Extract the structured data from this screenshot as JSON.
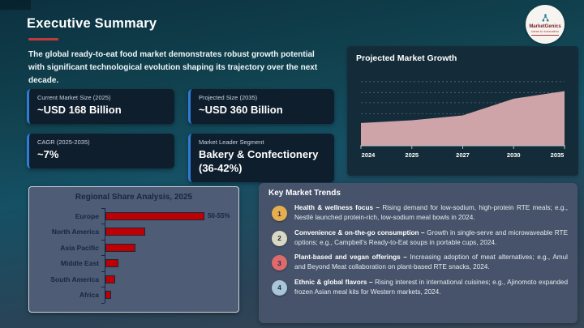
{
  "slide": {
    "title": "Executive Summary",
    "intro": "The global ready-to-eat food market demonstrates robust growth potential with significant technological evolution shaping its trajectory over the next decade."
  },
  "logo": {
    "name": "MarketGenics",
    "tagline": "Ideas to Innovation"
  },
  "stats": [
    {
      "label": "Current Market Size (2025)",
      "value": "~USD 168 Billion"
    },
    {
      "label": "Projected Size (2035)",
      "value": "~USD 360 Billion"
    },
    {
      "label": "CAGR (2025-2035)",
      "value": "~7%"
    },
    {
      "label": "Market Leader Segment",
      "value": "Bakery & Confectionery (36-42%)"
    }
  ],
  "chart_data": [
    {
      "type": "area",
      "title": "Projected Market Growth",
      "x": [
        "2024",
        "2025",
        "2027",
        "2030",
        "2035"
      ],
      "values": [
        150,
        168,
        200,
        310,
        360
      ],
      "ylim": [
        0,
        480
      ],
      "xlabel": "",
      "ylabel": "",
      "grid": "dashed horizontal, no y tick labels",
      "legend": "none",
      "area_color": "#cfa4a8"
    },
    {
      "type": "bar",
      "title": "Regional Share Analysis, 2025",
      "orientation": "horizontal",
      "categories": [
        "Europe",
        "North America",
        "Asia Pacific",
        "Middle East",
        "South America",
        "Africa"
      ],
      "values": [
        52.5,
        21,
        16,
        7,
        5,
        3
      ],
      "data_labels": [
        "50-55%",
        "",
        "",
        "",
        "",
        ""
      ],
      "unit": "percent share",
      "bar_color": "#c00000",
      "legend": "none"
    }
  ],
  "trends": {
    "heading": "Key Market Trends",
    "items": [
      {
        "num": "1",
        "color": "#e6ae4e",
        "title": "Health & wellness focus –",
        "body": "Rising demand for low-sodium, high-protein RTE meals; e.g., Nestlé launched protein-rich, low-sodium meal bowls in 2024."
      },
      {
        "num": "2",
        "color": "#d9d8c3",
        "title": "Convenience & on-the-go consumption –",
        "body": "Growth in single-serve and microwaveable RTE options; e.g., Campbell’s Ready-to-Eat soups in portable cups, 2024."
      },
      {
        "num": "3",
        "color": "#df6a6b",
        "title": "Plant-based and vegan offerings –",
        "body": "Increasing adoption of meat alternatives; e.g., Amul and Beyond Meat collaboration on plant-based RTE snacks, 2024."
      },
      {
        "num": "4",
        "color": "#a9c5d8",
        "title": "Ethnic & global flavors –",
        "body": "Rising interest in international cuisines; e.g., Ajinomoto expanded frozen Asian meal kits for Western markets, 2024."
      }
    ]
  },
  "colors": {
    "title_underline": "#bf3a3a",
    "stat_card_accent": "#2e7cd6",
    "bar_red": "#c00000",
    "area_pink": "#cfa4a8"
  }
}
